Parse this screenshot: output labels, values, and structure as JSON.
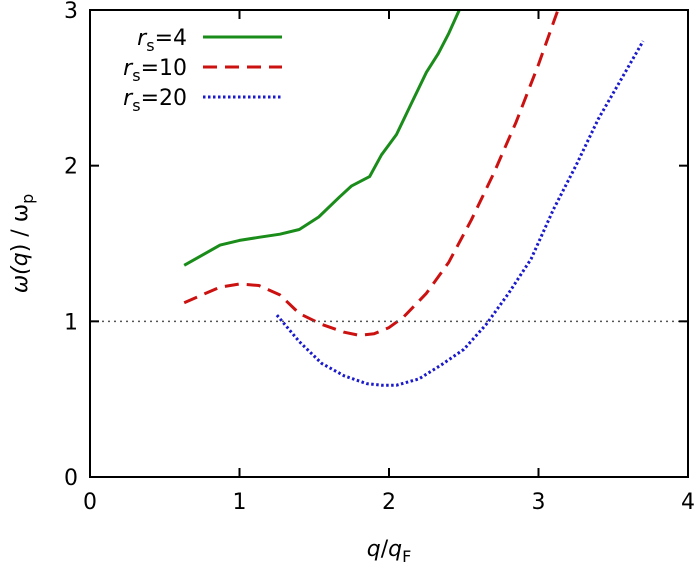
{
  "chart_data": {
    "type": "line",
    "xlabel": {
      "main": "q",
      "sep": "/",
      "base": "q",
      "sub": "F"
    },
    "ylabel": {
      "pre": "ω(",
      "mid": "q",
      "post": ") / ω",
      "sub": "p"
    },
    "xlim": [
      0,
      4
    ],
    "ylim": [
      0,
      3
    ],
    "xticks": [
      "0",
      "1",
      "2",
      "3",
      "4"
    ],
    "yticks": [
      "0",
      "1",
      "2",
      "3"
    ],
    "grid": false,
    "legend_position": "top-left",
    "reference_line": {
      "y": 1,
      "style": "dotted",
      "color": "#555555"
    },
    "series": [
      {
        "legend_var": "r",
        "legend_sub": "s",
        "legend_value": "=4",
        "color": "#1a8c1a",
        "dash": "solid",
        "x": [
          0.63,
          0.87,
          1.0,
          1.13,
          1.27,
          1.4,
          1.53,
          1.67,
          1.75,
          1.87,
          1.95,
          2.05,
          2.15,
          2.25,
          2.33,
          2.4,
          2.47
        ],
        "y": [
          1.36,
          1.49,
          1.52,
          1.54,
          1.56,
          1.59,
          1.67,
          1.8,
          1.87,
          1.93,
          2.07,
          2.2,
          2.4,
          2.6,
          2.72,
          2.85,
          3.0
        ]
      },
      {
        "legend_var": "r",
        "legend_sub": "s",
        "legend_value": "=10",
        "color": "#cc1111",
        "dash": "dashed",
        "x": [
          0.63,
          0.87,
          1.0,
          1.13,
          1.27,
          1.4,
          1.55,
          1.7,
          1.8,
          1.9,
          2.0,
          2.1,
          2.25,
          2.4,
          2.55,
          2.7,
          2.85,
          3.0,
          3.13
        ],
        "y": [
          1.12,
          1.22,
          1.24,
          1.23,
          1.17,
          1.05,
          0.98,
          0.93,
          0.91,
          0.92,
          0.96,
          1.03,
          1.18,
          1.38,
          1.65,
          1.95,
          2.28,
          2.65,
          3.0
        ]
      },
      {
        "legend_var": "r",
        "legend_sub": "s",
        "legend_value": "=20",
        "color": "#1a1acc",
        "dash": "dotted",
        "x": [
          1.25,
          1.4,
          1.55,
          1.7,
          1.85,
          1.95,
          2.05,
          2.2,
          2.35,
          2.5,
          2.65,
          2.8,
          2.95,
          3.1,
          3.25,
          3.4,
          3.55,
          3.7
        ],
        "y": [
          1.04,
          0.87,
          0.73,
          0.65,
          0.6,
          0.59,
          0.59,
          0.63,
          0.72,
          0.82,
          0.98,
          1.18,
          1.4,
          1.72,
          2.0,
          2.3,
          2.55,
          2.8
        ]
      }
    ]
  }
}
